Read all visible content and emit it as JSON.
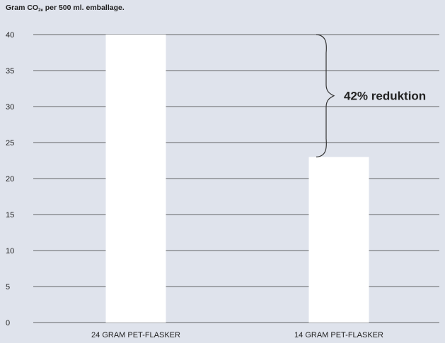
{
  "chart_data": {
    "type": "bar",
    "ylabel_prefix": "Gram CO",
    "ylabel_sub": "2e",
    "ylabel_suffix": " per 500 ml. emballage.",
    "categories": [
      "24 GRAM PET-FLASKER",
      "14 GRAM PET-FLASKER"
    ],
    "values": [
      40,
      23
    ],
    "ylim": [
      0,
      40
    ],
    "yticks": [
      0,
      5,
      10,
      15,
      20,
      25,
      30,
      35,
      40
    ],
    "yticks_labels": [
      "0",
      "5",
      "10",
      "15",
      "20",
      "25",
      "30",
      "35",
      "40"
    ],
    "grid": true,
    "colors": {
      "background": "#dfe3ec",
      "bar": "#ffffff",
      "grid": "#3a3a3a"
    },
    "annotation": {
      "text": "42% reduktion",
      "from_value": 40,
      "to_value": 23
    }
  }
}
